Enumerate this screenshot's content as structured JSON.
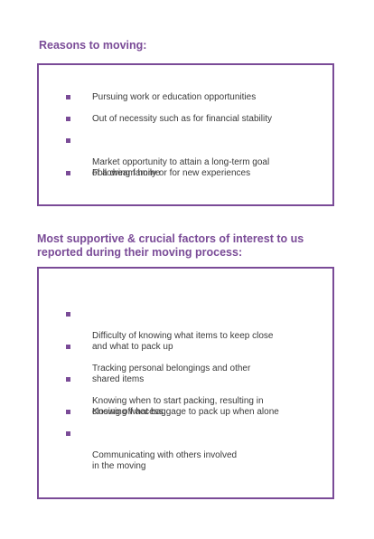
{
  "section1": {
    "title": "Reasons to moving:",
    "items": [
      "Pursuing work or education opportunities",
      "Out of necessity such as for financial stability",
      "Market opportunity to attain a long-term goal\nof a dream home",
      "Following family or for new experiences"
    ]
  },
  "section2": {
    "title_line1": "Most supportive & crucial factors of interest to us",
    "title_line2": "reported during their moving process:",
    "items": [
      "Difficulty of knowing what items to keep close\nand what to pack up",
      "Tracking personal belongings and other\nshared items",
      "Knowing when to start packing, resulting in\nclosing off access",
      "Knowing what baggage to pack up when alone",
      "Communicating with others involved\nin the moving"
    ]
  }
}
